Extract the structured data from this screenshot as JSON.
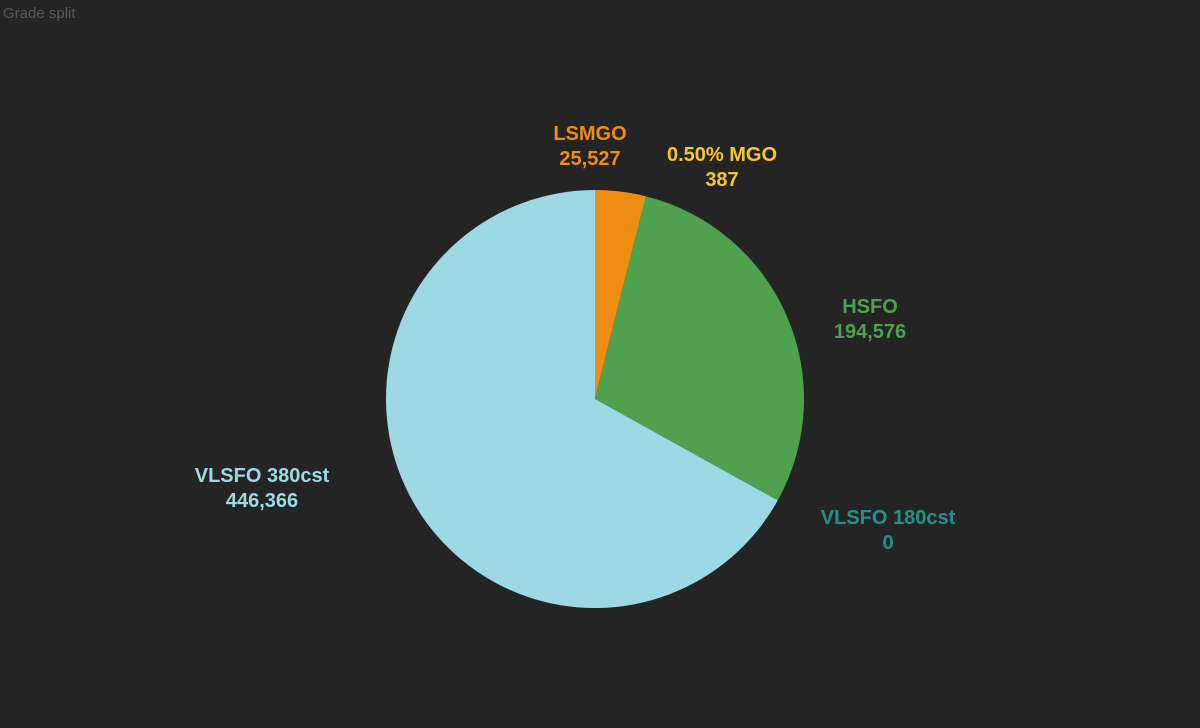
{
  "chart_data": {
    "type": "pie",
    "title": "Grade split",
    "start": "top",
    "direction": "clockwise",
    "slices": [
      {
        "label": "LSMGO",
        "value": 25527,
        "display": "25,527",
        "color": "#ef8c12"
      },
      {
        "label": "0.50% MGO",
        "value": 387,
        "display": "387",
        "color": "#f7c531"
      },
      {
        "label": "HSFO",
        "value": 194576,
        "display": "194,576",
        "color": "#4fa150"
      },
      {
        "label": "VLSFO 180cst",
        "value": 0,
        "display": "0",
        "color": "#26918a"
      },
      {
        "label": "VLSFO 380cst",
        "value": 446366,
        "display": "446,366",
        "color": "#9cd9e5"
      }
    ]
  }
}
